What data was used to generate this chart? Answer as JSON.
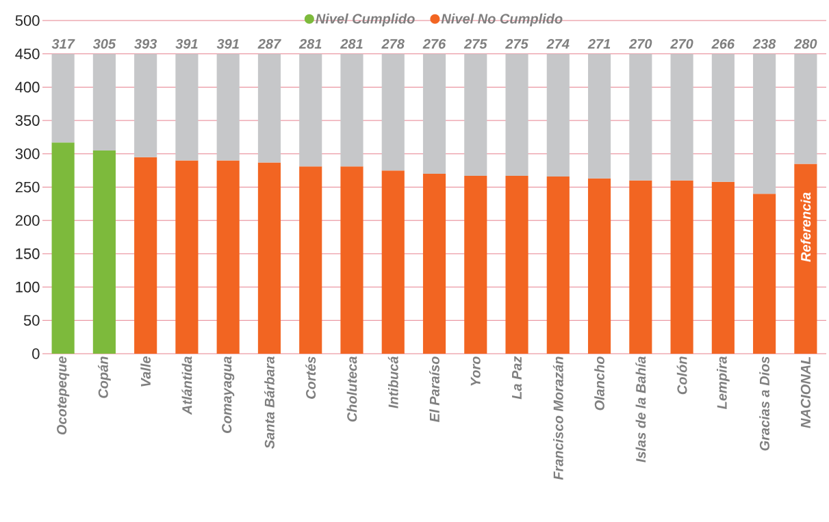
{
  "chart_data": {
    "type": "bar",
    "stacked": true,
    "categories": [
      "Ocotepeque",
      "Copán",
      "Valle",
      "Atlántida",
      "Comayagua",
      "Santa Bárbara",
      "Cortés",
      "Choluteca",
      "Intibucá",
      "El Paraíso",
      "Yoro",
      "La Paz",
      "Francisco Morazán",
      "Olancho",
      "Islas de la Bahía",
      "Colón",
      "Lempira",
      "Gracias a Dios",
      "NACIONAL"
    ],
    "series": [
      {
        "name": "Nivel Cumplido",
        "color": "#7dba3c",
        "values": [
          317,
          305,
          null,
          null,
          null,
          null,
          null,
          null,
          null,
          null,
          null,
          null,
          null,
          null,
          null,
          null,
          null,
          null,
          null
        ]
      },
      {
        "name": "Nivel No Cumplido",
        "color": "#f26522",
        "values": [
          null,
          null,
          295,
          290,
          290,
          287,
          281,
          281,
          275,
          270,
          267,
          267,
          266,
          263,
          260,
          260,
          258,
          240,
          285
        ]
      },
      {
        "color": "#c6c7c9",
        "values": [
          133,
          145,
          155,
          160,
          160,
          163,
          169,
          169,
          175,
          180,
          183,
          183,
          184,
          187,
          190,
          190,
          192,
          210,
          165
        ]
      }
    ],
    "annotations": [
      "317",
      "305",
      "393",
      "391",
      "391",
      "287",
      "281",
      "281",
      "278",
      "276",
      "275",
      "275",
      "274",
      "271",
      "270",
      "270",
      "266",
      "238",
      "280",
      "Referencia"
    ],
    "ylim": [
      0,
      500
    ],
    "yticks": [
      0,
      50,
      100,
      150,
      200,
      250,
      300,
      350,
      400,
      450,
      500
    ],
    "grid": "y",
    "legend": "top"
  }
}
